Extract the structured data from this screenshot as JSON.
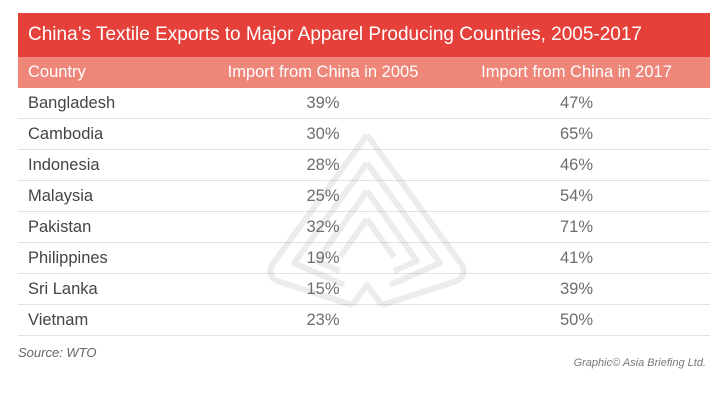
{
  "chart_data": {
    "type": "table",
    "title": "China’s Textile Exports to Major Apparel Producing Countries, 2005-2017",
    "columns": [
      "Country",
      "Import from China in 2005",
      "Import from China in 2017"
    ],
    "rows": [
      {
        "country": "Bangladesh",
        "y2005": "39%",
        "y2017": "47%"
      },
      {
        "country": "Cambodia",
        "y2005": "30%",
        "y2017": "65%"
      },
      {
        "country": "Indonesia",
        "y2005": "28%",
        "y2017": "46%"
      },
      {
        "country": "Malaysia",
        "y2005": "25%",
        "y2017": "54%"
      },
      {
        "country": "Pakistan",
        "y2005": "32%",
        "y2017": "71%"
      },
      {
        "country": "Philippines",
        "y2005": "19%",
        "y2017": "41%"
      },
      {
        "country": "Sri Lanka",
        "y2005": "15%",
        "y2017": "39%"
      },
      {
        "country": "Vietnam",
        "y2005": "23%",
        "y2017": "50%"
      }
    ]
  },
  "footer": {
    "source": "Source: WTO",
    "credit": "Graphic© Asia Briefing Ltd."
  },
  "colors": {
    "title_bg": "#e6403a",
    "header_bg": "#ee867a"
  },
  "icons": {
    "watermark": "asia-briefing-logo-watermark"
  }
}
